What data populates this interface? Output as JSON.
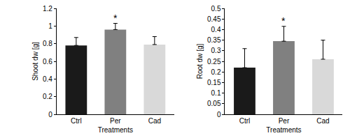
{
  "chart_data": [
    {
      "type": "bar",
      "x_label": "Treatments",
      "y_label": "Shoot dw [g]",
      "categories": [
        "Ctrl",
        "Per",
        "Cad"
      ],
      "values": [
        0.78,
        0.96,
        0.79
      ],
      "errors": [
        0.09,
        0.07,
        0.09
      ],
      "colors": [
        "#1a1a1a",
        "#808080",
        "#d9d9d9"
      ],
      "ylim": [
        0,
        1.2
      ],
      "yticks": [
        0,
        0.2,
        0.4,
        0.6,
        0.8,
        1,
        1.2
      ],
      "grid": false,
      "annotations": [
        {
          "text": "*",
          "category": "Per"
        }
      ]
    },
    {
      "type": "bar",
      "x_label": "Treatments",
      "y_label": "Root dw [g]",
      "categories": [
        "Ctrl",
        "Per",
        "Cad"
      ],
      "values": [
        0.22,
        0.345,
        0.26
      ],
      "errors": [
        0.09,
        0.07,
        0.09
      ],
      "colors": [
        "#1a1a1a",
        "#808080",
        "#d9d9d9"
      ],
      "ylim": [
        0,
        0.5
      ],
      "yticks": [
        0,
        0.05,
        0.1,
        0.15,
        0.2,
        0.25,
        0.3,
        0.35,
        0.4,
        0.45,
        0.5
      ],
      "grid": false,
      "annotations": [
        {
          "text": "*",
          "category": "Per"
        }
      ]
    }
  ]
}
